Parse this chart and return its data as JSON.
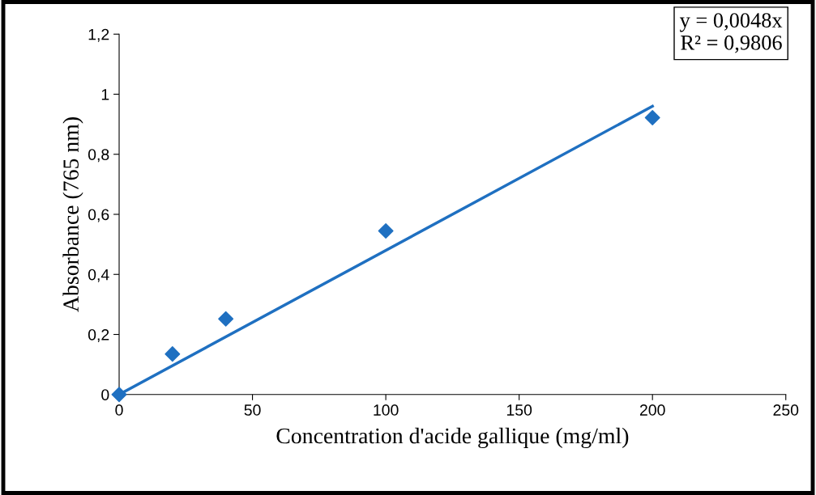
{
  "chart_data": {
    "type": "scatter",
    "xlabel": "Concentration d'acide gallique (mg/ml)",
    "ylabel": "Absorbance (765 nm)",
    "series": [
      {
        "color": "#1f70c1",
        "marker": "diamond",
        "x": [
          0,
          20,
          40,
          100,
          200
        ],
        "values": [
          0,
          0.135,
          0.252,
          0.545,
          0.922
        ]
      },
      {
        "type": "line",
        "color": "#1f70c1",
        "marker": "none",
        "line_style": "solid",
        "x": [
          0,
          200
        ],
        "values": [
          0,
          0.96
        ]
      }
    ],
    "xlim": [
      0,
      250
    ],
    "xticks": [
      0,
      50,
      100,
      150,
      200,
      250
    ],
    "ylim": [
      0,
      1.2
    ],
    "yticks": [
      0,
      {
        "value": 0.2,
        "label": "0,2"
      },
      {
        "value": 0.4,
        "label": "0,4"
      },
      {
        "value": 0.6,
        "label": "0,6"
      },
      {
        "value": 0.8,
        "label": "0,8"
      },
      1,
      {
        "value": 1.2,
        "label": "1,2"
      }
    ],
    "annotations": [
      "y = 0,0048x\nR² = 0,9806"
    ],
    "grid": false,
    "legend": false
  }
}
